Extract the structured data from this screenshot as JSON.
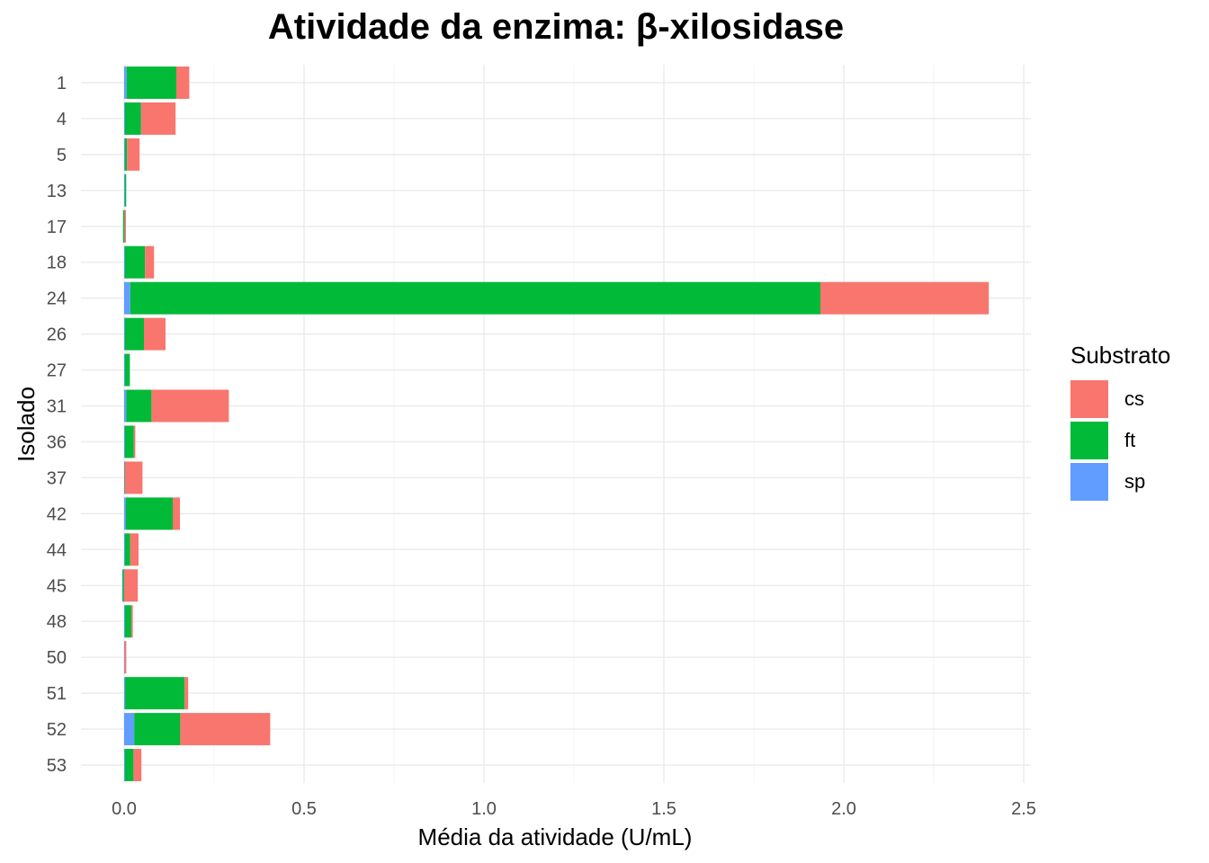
{
  "chart_data": {
    "type": "bar",
    "orientation": "horizontal",
    "stacked": true,
    "title": "Atividade da enzima: β-xilosidase",
    "xlabel": "Média da atividade (U/mL)",
    "ylabel": "Isolado",
    "xlim": [
      -0.12,
      2.52
    ],
    "xticks": [
      0.0,
      0.5,
      1.0,
      1.5,
      2.0,
      2.5
    ],
    "xtick_labels": [
      "0.0",
      "0.5",
      "1.0",
      "1.5",
      "2.0",
      "2.5"
    ],
    "grid": true,
    "categories": [
      "1",
      "4",
      "5",
      "13",
      "17",
      "18",
      "24",
      "26",
      "27",
      "31",
      "36",
      "37",
      "42",
      "44",
      "45",
      "48",
      "50",
      "51",
      "52",
      "53"
    ],
    "series": [
      {
        "name": "sp",
        "color": "#619CFF",
        "values": [
          0.007,
          0.002,
          0.002,
          0.002,
          0.001,
          0.002,
          0.017,
          0.002,
          0.002,
          0.006,
          0.002,
          0.001,
          0.005,
          0.002,
          -0.003,
          0.002,
          0.001,
          0.003,
          0.028,
          0.002
        ]
      },
      {
        "name": "ft",
        "color": "#00BA38",
        "values": [
          0.138,
          0.045,
          0.006,
          0.003,
          -0.003,
          0.056,
          1.918,
          0.053,
          0.014,
          0.07,
          0.025,
          0.001,
          0.13,
          0.015,
          -0.002,
          0.018,
          0.0,
          0.165,
          0.128,
          0.024
        ]
      },
      {
        "name": "cs",
        "color": "#F8766D",
        "values": [
          0.036,
          0.096,
          0.035,
          0.0,
          0.004,
          0.025,
          0.468,
          0.06,
          0.0,
          0.215,
          0.004,
          0.049,
          0.02,
          0.023,
          0.038,
          0.004,
          0.005,
          0.01,
          0.25,
          0.022
        ]
      }
    ],
    "legend": {
      "title": "Substrato",
      "position": "right",
      "order": [
        "cs",
        "ft",
        "sp"
      ]
    }
  }
}
